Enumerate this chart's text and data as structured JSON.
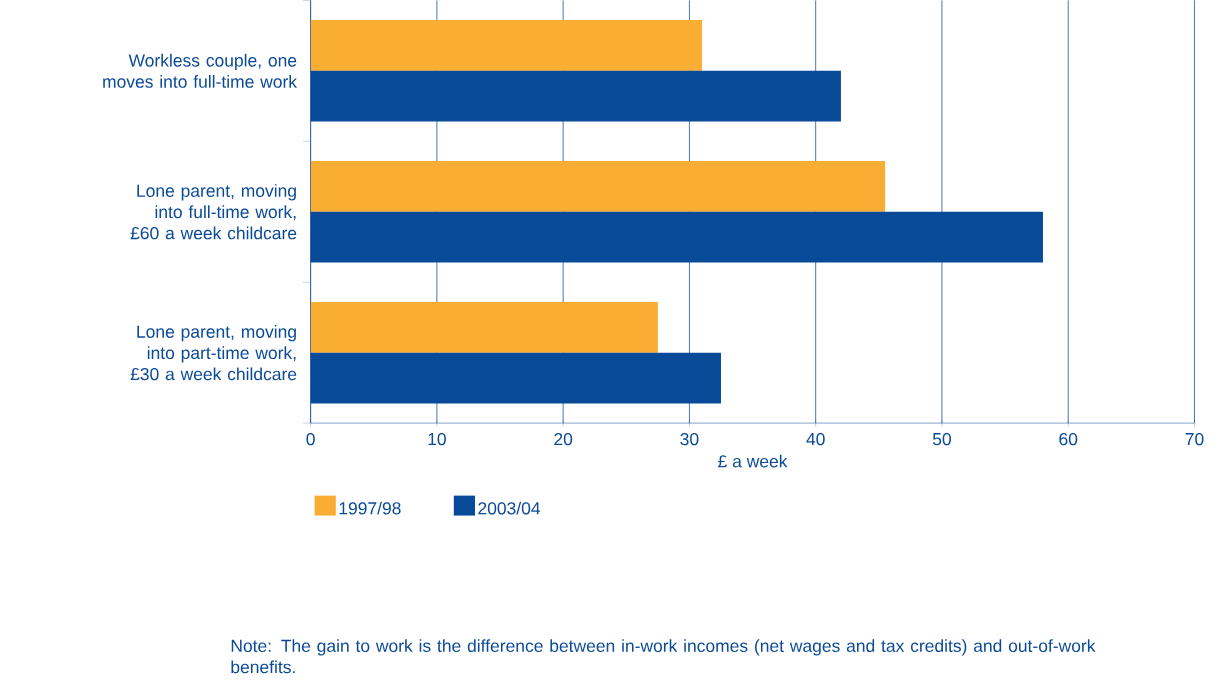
{
  "chart_data": {
    "type": "bar",
    "orientation": "horizontal",
    "categories": [
      "Workless couple, one moves into full-time work",
      "Lone parent, moving into full-time work, £60 a week childcare",
      "Lone parent, moving into part-time work, £30 a week childcare"
    ],
    "series": [
      {
        "name": "1997/98",
        "color": "#f9ae33",
        "values": [
          31,
          45.5,
          27.5
        ]
      },
      {
        "name": "2003/04",
        "color": "#084a97",
        "values": [
          42,
          58,
          32.5
        ]
      }
    ],
    "xlabel": "£ a week",
    "xlim": [
      0,
      70
    ],
    "xticks": [
      0,
      10,
      20,
      30,
      40,
      50,
      60,
      70
    ],
    "grid": "x",
    "legend": "bottom",
    "annotations": [
      "Note: The gain to work is the difference between in-work incomes (net wages and tax credits) and out-of-work benefits."
    ]
  }
}
